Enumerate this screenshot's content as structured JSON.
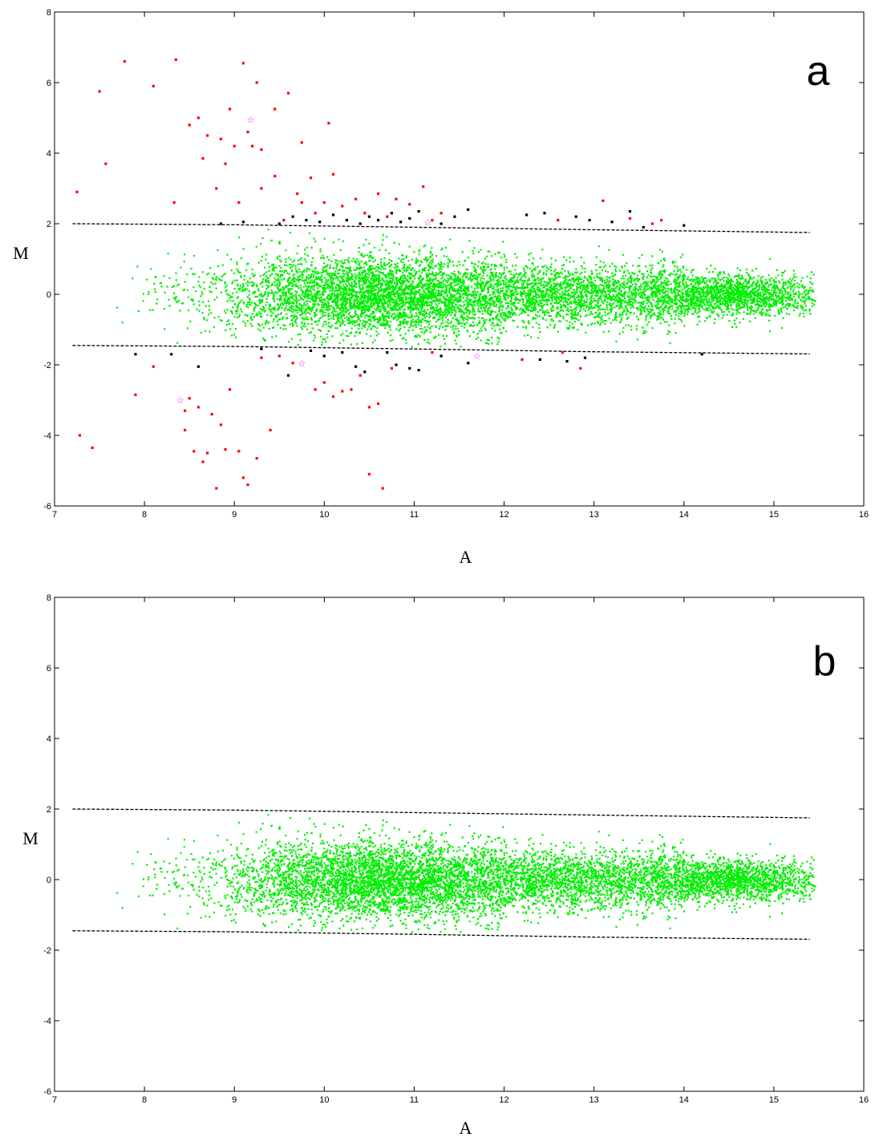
{
  "chart_data": [
    {
      "type": "scatter",
      "panel_label": "a",
      "xlabel": "A",
      "ylabel": "M",
      "xlim": [
        7,
        16
      ],
      "ylim": [
        -6,
        8
      ],
      "xticks": [
        "7",
        "8",
        "9",
        "10",
        "11",
        "12",
        "13",
        "14",
        "15",
        "16"
      ],
      "yticks": [
        "-6",
        "-4",
        "-2",
        "0",
        "2",
        "4",
        "6",
        "8"
      ],
      "grid": false,
      "thresholds": {
        "upper": [
          [
            7.2,
            2.0
          ],
          [
            9.0,
            1.97
          ],
          [
            11.0,
            1.9
          ],
          [
            13.0,
            1.83
          ],
          [
            15.4,
            1.75
          ]
        ],
        "lower": [
          [
            7.2,
            -1.45
          ],
          [
            9.0,
            -1.48
          ],
          [
            11.0,
            -1.55
          ],
          [
            13.0,
            -1.63
          ],
          [
            15.4,
            -1.69
          ]
        ]
      },
      "bulk_cloud": {
        "color": "#00ee00",
        "x_range": [
          7.5,
          15.5
        ],
        "center_m": 0
      },
      "series": [
        {
          "color": "#ff0000",
          "points": [
            [
              7.25,
              2.9
            ],
            [
              7.5,
              5.75
            ],
            [
              7.57,
              3.7
            ],
            [
              7.78,
              6.6
            ],
            [
              8.1,
              5.9
            ],
            [
              8.35,
              6.65
            ],
            [
              8.33,
              2.6
            ],
            [
              8.5,
              4.8
            ],
            [
              8.6,
              5.0
            ],
            [
              8.65,
              3.85
            ],
            [
              8.7,
              4.5
            ],
            [
              8.85,
              4.4
            ],
            [
              8.8,
              3.0
            ],
            [
              8.9,
              3.7
            ],
            [
              8.95,
              5.25
            ],
            [
              9.0,
              4.2
            ],
            [
              9.05,
              2.6
            ],
            [
              9.1,
              6.55
            ],
            [
              9.15,
              4.6
            ],
            [
              9.2,
              4.2
            ],
            [
              9.25,
              6.0
            ],
            [
              9.3,
              3.0
            ],
            [
              9.3,
              4.1
            ],
            [
              9.45,
              5.25
            ],
            [
              9.45,
              3.35
            ],
            [
              9.6,
              5.7
            ],
            [
              9.75,
              2.6
            ],
            [
              9.75,
              4.3
            ],
            [
              9.85,
              3.3
            ],
            [
              10.05,
              4.85
            ],
            [
              10.1,
              3.4
            ],
            [
              9.55,
              2.1
            ],
            [
              9.7,
              2.85
            ],
            [
              9.9,
              2.3
            ],
            [
              10.0,
              2.6
            ],
            [
              10.2,
              2.5
            ],
            [
              10.35,
              2.7
            ],
            [
              10.45,
              2.3
            ],
            [
              10.6,
              2.85
            ],
            [
              10.7,
              2.2
            ],
            [
              10.8,
              2.7
            ],
            [
              10.95,
              2.55
            ],
            [
              11.1,
              3.05
            ],
            [
              11.2,
              2.1
            ],
            [
              11.3,
              2.3
            ],
            [
              12.6,
              2.1
            ],
            [
              13.1,
              2.65
            ],
            [
              13.4,
              2.15
            ],
            [
              13.65,
              2.0
            ],
            [
              13.75,
              2.1
            ],
            [
              7.28,
              -4.0
            ],
            [
              7.42,
              -4.35
            ],
            [
              7.9,
              -2.85
            ],
            [
              8.1,
              -2.05
            ],
            [
              8.45,
              -3.3
            ],
            [
              8.45,
              -3.85
            ],
            [
              8.5,
              -2.95
            ],
            [
              8.55,
              -4.45
            ],
            [
              8.6,
              -3.2
            ],
            [
              8.65,
              -4.75
            ],
            [
              8.7,
              -4.5
            ],
            [
              8.75,
              -3.4
            ],
            [
              8.8,
              -5.5
            ],
            [
              8.85,
              -3.7
            ],
            [
              8.9,
              -4.4
            ],
            [
              8.95,
              -2.7
            ],
            [
              9.05,
              -4.45
            ],
            [
              9.1,
              -5.2
            ],
            [
              9.15,
              -5.4
            ],
            [
              9.25,
              -4.65
            ],
            [
              9.3,
              -1.8
            ],
            [
              9.4,
              -3.85
            ],
            [
              9.5,
              -1.75
            ],
            [
              9.65,
              -1.95
            ],
            [
              9.9,
              -2.7
            ],
            [
              10.0,
              -2.5
            ],
            [
              10.1,
              -2.9
            ],
            [
              10.2,
              -2.75
            ],
            [
              10.3,
              -2.7
            ],
            [
              10.4,
              -2.3
            ],
            [
              10.5,
              -3.2
            ],
            [
              10.5,
              -5.1
            ],
            [
              10.6,
              -3.1
            ],
            [
              10.65,
              -5.5
            ],
            [
              10.75,
              -2.1
            ],
            [
              11.2,
              -1.65
            ],
            [
              12.2,
              -1.85
            ],
            [
              12.65,
              -1.65
            ],
            [
              12.85,
              -2.1
            ]
          ]
        },
        {
          "color": "#000000",
          "points": [
            [
              8.85,
              2.0
            ],
            [
              9.1,
              2.05
            ],
            [
              9.5,
              2.0
            ],
            [
              9.65,
              2.2
            ],
            [
              9.8,
              2.1
            ],
            [
              9.95,
              2.05
            ],
            [
              10.1,
              2.25
            ],
            [
              10.25,
              2.1
            ],
            [
              10.4,
              2.0
            ],
            [
              10.5,
              2.2
            ],
            [
              10.6,
              2.1
            ],
            [
              10.75,
              2.3
            ],
            [
              10.85,
              2.05
            ],
            [
              10.95,
              2.15
            ],
            [
              11.05,
              2.35
            ],
            [
              11.3,
              2.0
            ],
            [
              11.45,
              2.2
            ],
            [
              11.6,
              2.4
            ],
            [
              12.25,
              2.25
            ],
            [
              12.45,
              2.3
            ],
            [
              12.8,
              2.2
            ],
            [
              12.95,
              2.1
            ],
            [
              13.2,
              2.05
            ],
            [
              13.4,
              2.35
            ],
            [
              13.55,
              1.9
            ],
            [
              14.0,
              1.95
            ],
            [
              7.9,
              -1.7
            ],
            [
              8.3,
              -1.7
            ],
            [
              8.6,
              -2.05
            ],
            [
              9.3,
              -1.55
            ],
            [
              9.6,
              -2.3
            ],
            [
              9.85,
              -1.6
            ],
            [
              10.0,
              -1.75
            ],
            [
              10.2,
              -1.65
            ],
            [
              10.35,
              -2.05
            ],
            [
              10.45,
              -2.2
            ],
            [
              10.7,
              -1.65
            ],
            [
              10.8,
              -2.0
            ],
            [
              10.95,
              -2.1
            ],
            [
              11.05,
              -2.15
            ],
            [
              11.3,
              -1.75
            ],
            [
              11.6,
              -1.95
            ],
            [
              12.4,
              -1.85
            ],
            [
              12.7,
              -1.9
            ],
            [
              12.9,
              -1.8
            ],
            [
              14.2,
              -1.7
            ]
          ]
        },
        {
          "color": "#ff00ff",
          "marker": "star",
          "points": [
            [
              9.18,
              4.95
            ],
            [
              11.15,
              2.05
            ],
            [
              11.7,
              -1.75
            ],
            [
              9.75,
              -1.95
            ],
            [
              8.4,
              -3.0
            ]
          ]
        }
      ]
    },
    {
      "type": "scatter",
      "panel_label": "b",
      "xlabel": "A",
      "ylabel": "M",
      "xlim": [
        7,
        16
      ],
      "ylim": [
        -6,
        8
      ],
      "xticks": [
        "7",
        "8",
        "9",
        "10",
        "11",
        "12",
        "13",
        "14",
        "15",
        "16"
      ],
      "yticks": [
        "-6",
        "-4",
        "-2",
        "0",
        "2",
        "4",
        "6",
        "8"
      ],
      "grid": false,
      "thresholds": {
        "upper": [
          [
            7.2,
            2.0
          ],
          [
            9.0,
            1.97
          ],
          [
            11.0,
            1.9
          ],
          [
            13.0,
            1.83
          ],
          [
            15.4,
            1.75
          ]
        ],
        "lower": [
          [
            7.2,
            -1.45
          ],
          [
            9.0,
            -1.48
          ],
          [
            11.0,
            -1.55
          ],
          [
            13.0,
            -1.63
          ],
          [
            15.4,
            -1.69
          ]
        ]
      },
      "bulk_cloud": {
        "color": "#00ee00",
        "x_range": [
          7.5,
          15.5
        ],
        "center_m": 0
      },
      "series": []
    }
  ]
}
